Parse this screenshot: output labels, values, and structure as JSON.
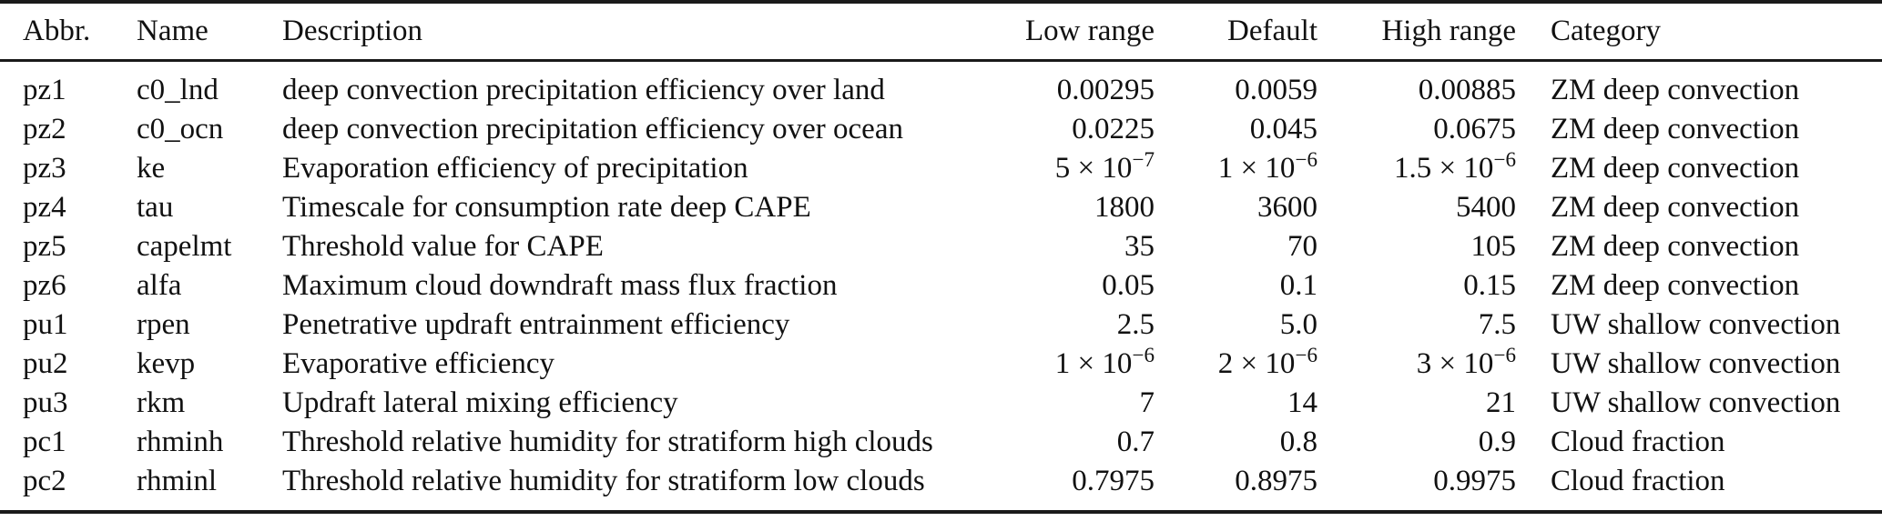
{
  "table": {
    "columns": [
      {
        "key": "abbr",
        "label": "Abbr.",
        "align": "abbr"
      },
      {
        "key": "name",
        "label": "Name",
        "align": "name"
      },
      {
        "key": "description",
        "label": "Description",
        "align": "desc"
      },
      {
        "key": "low_range",
        "label": "Low range",
        "align": "num"
      },
      {
        "key": "default",
        "label": "Default",
        "align": "num"
      },
      {
        "key": "high_range",
        "label": "High range",
        "align": "num"
      },
      {
        "key": "category",
        "label": "Category",
        "align": "category"
      }
    ],
    "rows": [
      {
        "abbr": "pz1",
        "name": "c0_lnd",
        "description": "deep convection precipitation efficiency over land",
        "low_range": "0.00295",
        "default": "0.0059",
        "high_range": "0.00885",
        "category": "ZM deep convection"
      },
      {
        "abbr": "pz2",
        "name": "c0_ocn",
        "description": "deep convection precipitation efficiency over ocean",
        "low_range": "0.0225",
        "default": "0.045",
        "high_range": "0.0675",
        "category": "ZM deep convection"
      },
      {
        "abbr": "pz3",
        "name": "ke",
        "description": "Evaporation efficiency of precipitation",
        "low_range": "5 × 10^−7",
        "default": "1 × 10^−6",
        "high_range": "1.5 × 10^−6",
        "category": "ZM deep convection"
      },
      {
        "abbr": "pz4",
        "name": "tau",
        "description": "Timescale for consumption rate deep CAPE",
        "low_range": "1800",
        "default": "3600",
        "high_range": "5400",
        "category": "ZM deep convection"
      },
      {
        "abbr": "pz5",
        "name": "capelmt",
        "description": "Threshold value for CAPE",
        "low_range": "35",
        "default": "70",
        "high_range": "105",
        "category": "ZM deep convection"
      },
      {
        "abbr": "pz6",
        "name": "alfa",
        "description": "Maximum cloud downdraft mass flux fraction",
        "low_range": "0.05",
        "default": "0.1",
        "high_range": "0.15",
        "category": "ZM deep convection"
      },
      {
        "abbr": "pu1",
        "name": "rpen",
        "description": "Penetrative updraft entrainment efficiency",
        "low_range": "2.5",
        "default": "5.0",
        "high_range": "7.5",
        "category": "UW shallow convection"
      },
      {
        "abbr": "pu2",
        "name": "kevp",
        "description": "Evaporative efficiency",
        "low_range": "1 × 10^−6",
        "default": "2 × 10^−6",
        "high_range": "3 × 10^−6",
        "category": "UW shallow convection"
      },
      {
        "abbr": "pu3",
        "name": "rkm",
        "description": "Updraft lateral mixing efficiency",
        "low_range": "7",
        "default": "14",
        "high_range": "21",
        "category": "UW shallow convection"
      },
      {
        "abbr": "pc1",
        "name": "rhminh",
        "description": "Threshold relative humidity for stratiform high clouds",
        "low_range": "0.7",
        "default": "0.8",
        "high_range": "0.9",
        "category": "Cloud fraction"
      },
      {
        "abbr": "pc2",
        "name": "rhminl",
        "description": "Threshold relative humidity for stratiform low clouds",
        "low_range": "0.7975",
        "default": "0.8975",
        "high_range": "0.9975",
        "category": "Cloud fraction"
      }
    ],
    "rule_color": "#1a1a1a",
    "text_color": "#111111"
  }
}
